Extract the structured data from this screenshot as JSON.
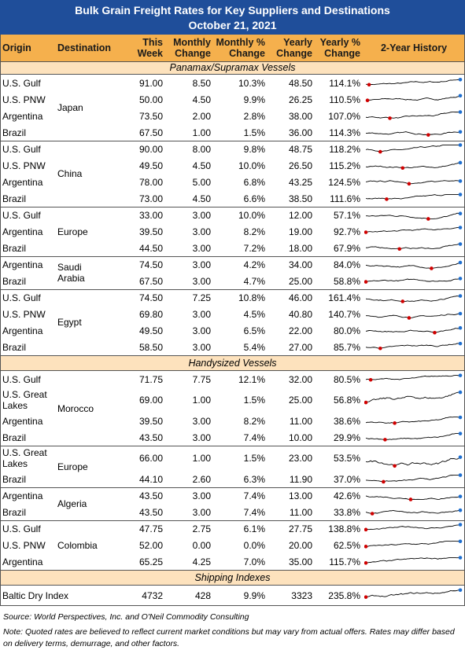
{
  "header": {
    "title": "Bulk Grain Freight Rates for Key Suppliers and Destinations",
    "date": "October 21, 2021"
  },
  "columns": [
    "Origin",
    "Destination",
    "This Week",
    "Monthly Change",
    "Monthly % Change",
    "Yearly Change",
    "Yearly % Change",
    "2-Year History"
  ],
  "sections": [
    {
      "title": "Panamax/Supramax Vessels",
      "groups": [
        {
          "destination": "Japan",
          "rows": [
            [
              "U.S. Gulf",
              "91.00",
              "8.50",
              "10.3%",
              "48.50",
              "114.1%"
            ],
            [
              "U.S. PNW",
              "50.00",
              "4.50",
              "9.9%",
              "26.25",
              "110.5%"
            ],
            [
              "Argentina",
              "73.50",
              "2.00",
              "2.8%",
              "38.00",
              "107.0%"
            ],
            [
              "Brazil",
              "67.50",
              "1.00",
              "1.5%",
              "36.00",
              "114.3%"
            ]
          ]
        },
        {
          "destination": "China",
          "rows": [
            [
              "U.S. Gulf",
              "90.00",
              "8.00",
              "9.8%",
              "48.75",
              "118.2%"
            ],
            [
              "U.S. PNW",
              "49.50",
              "4.50",
              "10.0%",
              "26.50",
              "115.2%"
            ],
            [
              "Argentina",
              "78.00",
              "5.00",
              "6.8%",
              "43.25",
              "124.5%"
            ],
            [
              "Brazil",
              "73.00",
              "4.50",
              "6.6%",
              "38.50",
              "111.6%"
            ]
          ]
        },
        {
          "destination": "Europe",
          "rows": [
            [
              "U.S. Gulf",
              "33.00",
              "3.00",
              "10.0%",
              "12.00",
              "57.1%"
            ],
            [
              "Argentina",
              "39.50",
              "3.00",
              "8.2%",
              "19.00",
              "92.7%"
            ],
            [
              "Brazil",
              "44.50",
              "3.00",
              "7.2%",
              "18.00",
              "67.9%"
            ]
          ]
        },
        {
          "destination": "Saudi Arabia",
          "rows": [
            [
              "Argentina",
              "74.50",
              "3.00",
              "4.2%",
              "34.00",
              "84.0%"
            ],
            [
              "Brazil",
              "67.50",
              "3.00",
              "4.7%",
              "25.00",
              "58.8%"
            ]
          ]
        },
        {
          "destination": "Egypt",
          "rows": [
            [
              "U.S. Gulf",
              "74.50",
              "7.25",
              "10.8%",
              "46.00",
              "161.4%"
            ],
            [
              "U.S. PNW",
              "69.80",
              "3.00",
              "4.5%",
              "40.80",
              "140.7%"
            ],
            [
              "Argentina",
              "49.50",
              "3.00",
              "6.5%",
              "22.00",
              "80.0%"
            ],
            [
              "Brazil",
              "58.50",
              "3.00",
              "5.4%",
              "27.00",
              "85.7%"
            ]
          ]
        }
      ]
    },
    {
      "title": "Handysized Vessels",
      "groups": [
        {
          "destination": "Morocco",
          "rows": [
            [
              "U.S. Gulf",
              "71.75",
              "7.75",
              "12.1%",
              "32.00",
              "80.5%"
            ],
            [
              "U.S. Great Lakes",
              "69.00",
              "1.00",
              "1.5%",
              "25.00",
              "56.8%"
            ],
            [
              "Argentina",
              "39.50",
              "3.00",
              "8.2%",
              "11.00",
              "38.6%"
            ],
            [
              "Brazil",
              "43.50",
              "3.00",
              "7.4%",
              "10.00",
              "29.9%"
            ]
          ]
        },
        {
          "destination": "Europe",
          "rows": [
            [
              "U.S. Great Lakes",
              "66.00",
              "1.00",
              "1.5%",
              "23.00",
              "53.5%"
            ],
            [
              "Brazil",
              "44.10",
              "2.60",
              "6.3%",
              "11.90",
              "37.0%"
            ]
          ]
        },
        {
          "destination": "Algeria",
          "rows": [
            [
              "Argentina",
              "43.50",
              "3.00",
              "7.4%",
              "13.00",
              "42.6%"
            ],
            [
              "Brazil",
              "43.50",
              "3.00",
              "7.4%",
              "11.00",
              "33.8%"
            ]
          ]
        },
        {
          "destination": "Colombia",
          "rows": [
            [
              "U.S. Gulf",
              "47.75",
              "2.75",
              "6.1%",
              "27.75",
              "138.8%"
            ],
            [
              "U.S. PNW",
              "52.00",
              "0.00",
              "0.0%",
              "20.00",
              "62.5%"
            ],
            [
              "Argentina",
              "65.25",
              "4.25",
              "7.0%",
              "35.00",
              "115.7%"
            ]
          ]
        }
      ]
    },
    {
      "title": "Shipping Indexes",
      "groups": [
        {
          "destination": "",
          "rows": [
            [
              "Baltic Dry Index",
              "4732",
              "428",
              "9.9%",
              "3323",
              "235.8%"
            ]
          ]
        }
      ]
    }
  ],
  "footer": {
    "source": "Source: World Perspectives, Inc. and O'Neil Commodity Consulting",
    "note": "Note: Quoted rates are believed to reflect current market conditions but may vary from actual offers. Rates may differ based on delivery terms, demurrage, and other factors."
  }
}
